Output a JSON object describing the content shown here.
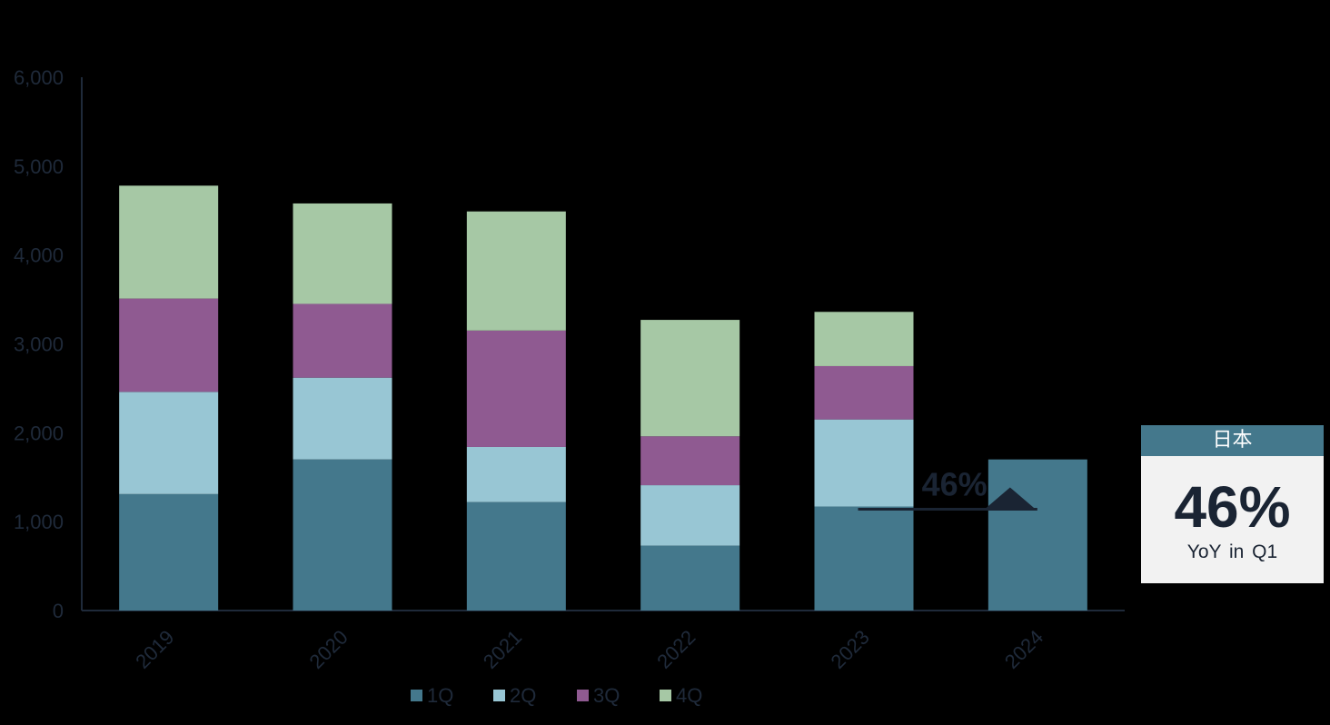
{
  "chart_data": {
    "type": "bar",
    "stacked": true,
    "categories": [
      "2019",
      "2020",
      "2021",
      "2022",
      "2023",
      "2024"
    ],
    "series": [
      {
        "name": "1Q",
        "color": "#44788c",
        "values": [
          1310,
          1700,
          1220,
          730,
          1170,
          1700
        ]
      },
      {
        "name": "2Q",
        "color": "#98c6d4",
        "values": [
          1150,
          920,
          620,
          680,
          980,
          0
        ]
      },
      {
        "name": "3Q",
        "color": "#8f5a91",
        "values": [
          1050,
          830,
          1310,
          550,
          600,
          0
        ]
      },
      {
        "name": "4Q",
        "color": "#a6c8a5",
        "values": [
          1270,
          1130,
          1340,
          1310,
          610,
          0
        ]
      }
    ],
    "y_ticks": [
      "0",
      "1,000",
      "2,000",
      "3,000",
      "4,000",
      "5,000",
      "6,000"
    ],
    "ylim": [
      0,
      6000
    ],
    "title": "",
    "xlabel": "",
    "ylabel": "",
    "legend_position": "bottom",
    "annotation": {
      "label": "46%",
      "from_category": "2023",
      "to_category": "2024"
    }
  },
  "callout": {
    "header": "日本",
    "value": "46%",
    "subtitle": "YoY in Q1"
  }
}
